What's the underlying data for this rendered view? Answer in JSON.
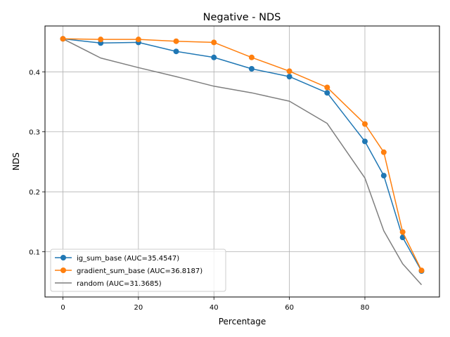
{
  "chart_data": {
    "type": "line",
    "title": "Negative - NDS",
    "xlabel": "Percentage",
    "ylabel": "NDS",
    "xlim": [
      -4.75,
      99.75
    ],
    "ylim": [
      0.0247,
      0.4764
    ],
    "xticks": [
      0,
      20,
      40,
      60,
      80
    ],
    "xtick_labels": [
      "0",
      "20",
      "40",
      "60",
      "80"
    ],
    "yticks": [
      0.1,
      0.2,
      0.3,
      0.4
    ],
    "ytick_labels": [
      "0.1",
      "0.2",
      "0.3",
      "0.4"
    ],
    "grid": true,
    "legend_position": "lower-left",
    "x": [
      0,
      10,
      20,
      30,
      40,
      50,
      60,
      70,
      80,
      85,
      90,
      95
    ],
    "series": [
      {
        "name": "ig_sum_base (AUC=35.4547)",
        "color": "#1f77b4",
        "marker": "circle",
        "values": [
          0.455,
          0.448,
          0.449,
          0.434,
          0.424,
          0.405,
          0.392,
          0.365,
          0.284,
          0.227,
          0.124,
          0.068
        ]
      },
      {
        "name": "gradient_sum_base (AUC=36.8187)",
        "color": "#ff7f0e",
        "marker": "circle",
        "values": [
          0.455,
          0.454,
          0.454,
          0.451,
          0.449,
          0.424,
          0.401,
          0.374,
          0.313,
          0.266,
          0.133,
          0.069
        ]
      },
      {
        "name": "random (AUC=31.3685)",
        "color": "#7f7f7f",
        "marker": "none",
        "values": [
          0.455,
          0.423,
          0.407,
          0.392,
          0.376,
          0.365,
          0.351,
          0.314,
          0.223,
          0.135,
          0.08,
          0.045
        ]
      }
    ]
  }
}
